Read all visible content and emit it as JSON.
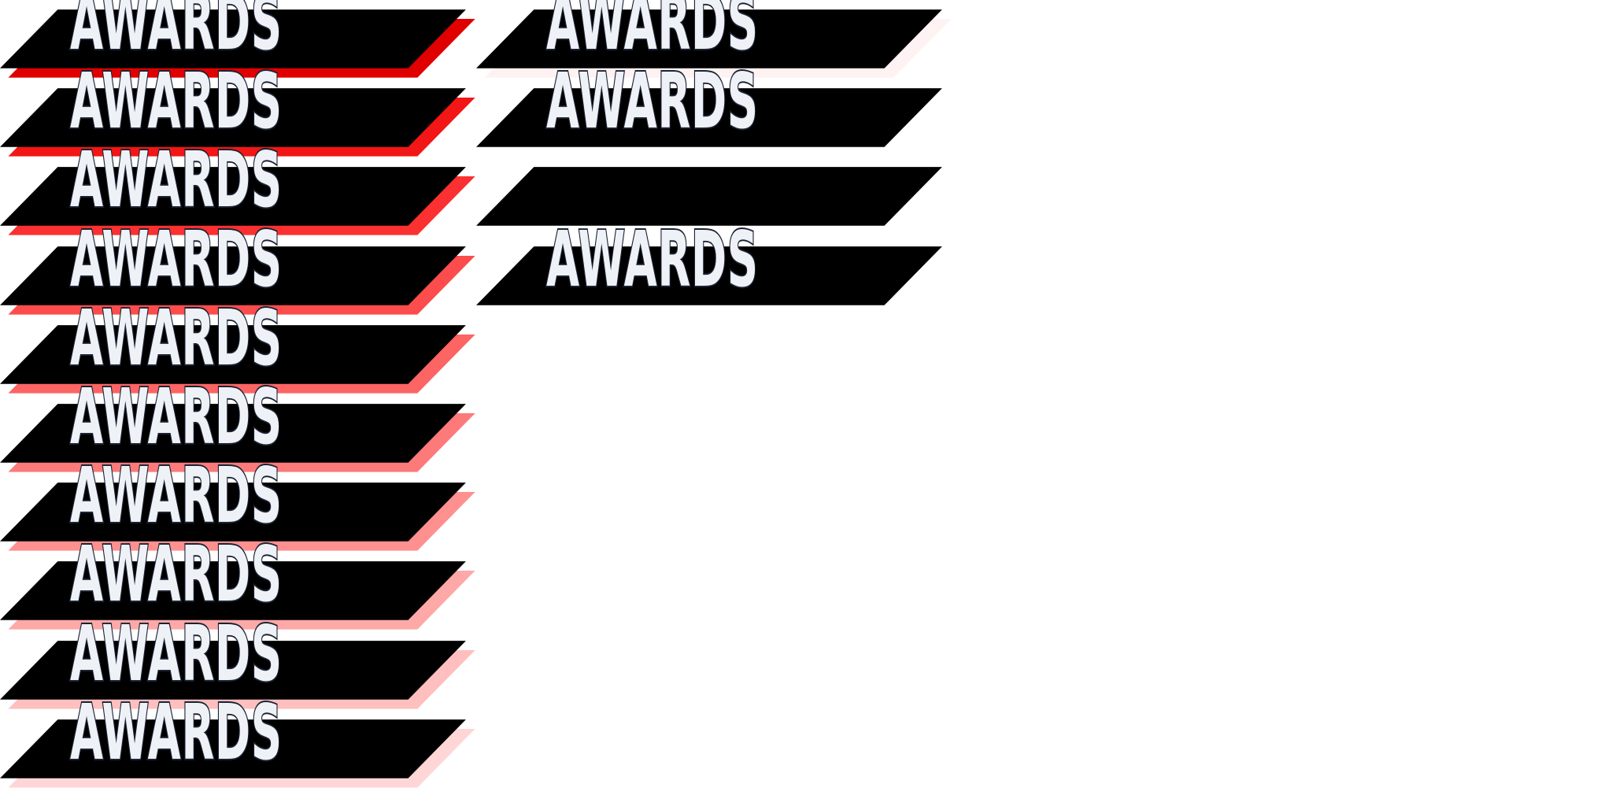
{
  "sheet": {
    "background_color": "#ffffff",
    "banner_color": "#000000",
    "label_fill_color": "#eef1f6",
    "label_outline_color": "#1a2233"
  },
  "columns": [
    {
      "frames": [
        {
          "label": "AWARDS",
          "shadow_color": "#e00000"
        },
        {
          "label": "AWARDS",
          "shadow_color": "#f21616"
        },
        {
          "label": "AWARDS",
          "shadow_color": "#fb3030"
        },
        {
          "label": "AWARDS",
          "shadow_color": "#fc4c4c"
        },
        {
          "label": "AWARDS",
          "shadow_color": "#fd6464"
        },
        {
          "label": "AWARDS",
          "shadow_color": "#fd7a7a"
        },
        {
          "label": "AWARDS",
          "shadow_color": "#fe9090"
        },
        {
          "label": "AWARDS",
          "shadow_color": "#fea8a8"
        },
        {
          "label": "AWARDS",
          "shadow_color": "#ffbfbf"
        },
        {
          "label": "AWARDS",
          "shadow_color": "#ffd6d6"
        }
      ]
    },
    {
      "frames": [
        {
          "label": "AWARDS",
          "shadow_color": "#fff2f2"
        },
        {
          "label": "AWARDS",
          "shadow_color": null
        },
        {
          "label": "",
          "shadow_color": null
        },
        {
          "label": "AWARDS",
          "shadow_color": null
        }
      ]
    }
  ]
}
